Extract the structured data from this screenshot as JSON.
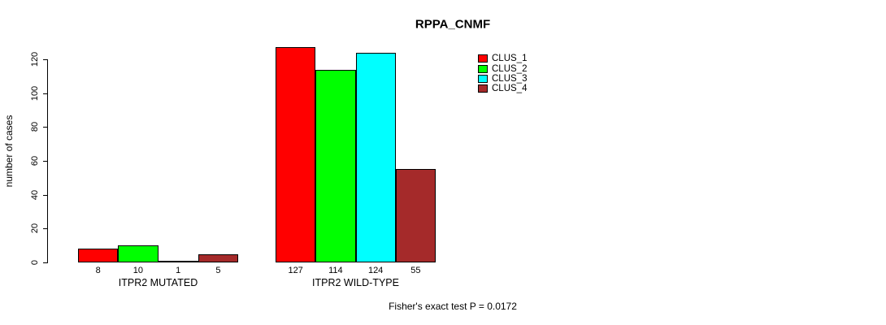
{
  "chart_data": {
    "type": "bar",
    "title": "RPPA_CNMF",
    "ylabel": "number of cases",
    "xlabel": "",
    "categories": [
      "ITPR2 MUTATED",
      "ITPR2 WILD-TYPE"
    ],
    "series": [
      {
        "name": "CLUS_1",
        "color": "#FF0000",
        "values": [
          8,
          127
        ]
      },
      {
        "name": "CLUS_2",
        "color": "#00FF00",
        "values": [
          10,
          114
        ]
      },
      {
        "name": "CLUS_3",
        "color": "#00FFFF",
        "values": [
          1,
          124
        ]
      },
      {
        "name": "CLUS_4",
        "color": "#A52A2A",
        "values": [
          5,
          55
        ]
      }
    ],
    "yticks": [
      0,
      20,
      40,
      60,
      80,
      100,
      120
    ],
    "ylim": [
      0,
      120
    ],
    "grid": false,
    "bar_outline_color": "#000000",
    "legend_position": "top-right",
    "annotation": "Fisher's exact test P = 0.0172"
  }
}
